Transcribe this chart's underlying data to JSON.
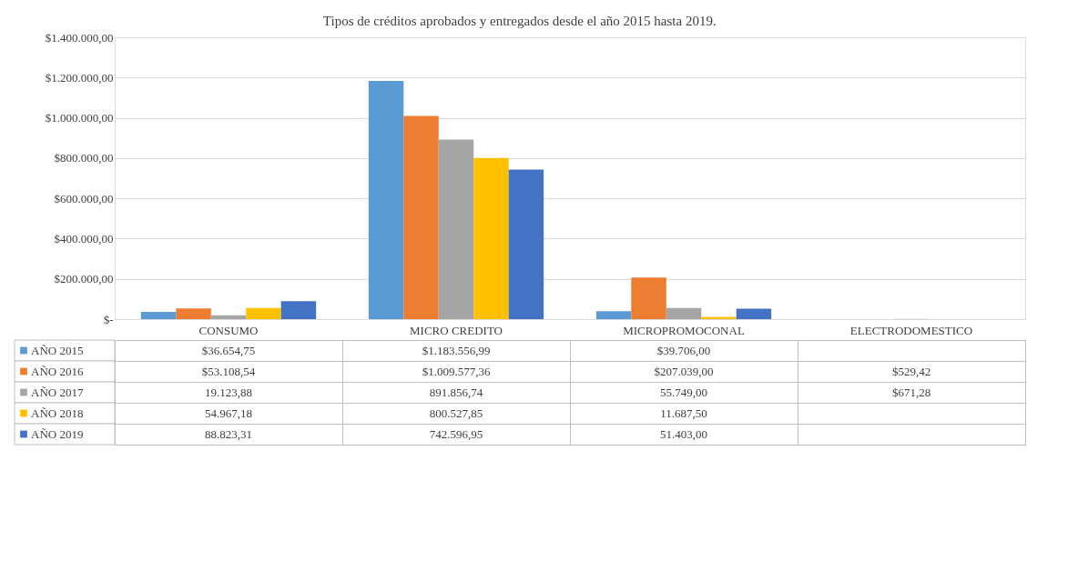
{
  "chart_data": {
    "type": "bar",
    "title": "Tipos de créditos aprobados y entregados desde el año 2015 hasta 2019.",
    "categories": [
      "CONSUMO",
      "MICRO CREDITO",
      "MICROPROMOCONAL",
      "ELECTRODOMESTICO"
    ],
    "series": [
      {
        "name": "AÑO 2015",
        "color": "#5b9bd5",
        "values": [
          36654.75,
          1183556.99,
          39706.0,
          null
        ],
        "value_labels": [
          "$36.654,75",
          "$1.183.556,99",
          "$39.706,00",
          null
        ]
      },
      {
        "name": "AÑO 2016",
        "color": "#ed7d31",
        "values": [
          53108.54,
          1009577.36,
          207039.0,
          529.42
        ],
        "value_labels": [
          "$53.108,54",
          "$1.009.577,36",
          "$207.039,00",
          "$529,42"
        ]
      },
      {
        "name": "AÑO 2017",
        "color": "#a5a5a5",
        "values": [
          19123.88,
          891856.74,
          55749.0,
          671.28
        ],
        "value_labels": [
          "19.123,88",
          "891.856,74",
          "55.749,00",
          "$671,28"
        ]
      },
      {
        "name": "AÑO 2018",
        "color": "#ffc000",
        "values": [
          54967.18,
          800527.85,
          11687.5,
          null
        ],
        "value_labels": [
          "54.967,18",
          "800.527,85",
          "11.687,50",
          null
        ]
      },
      {
        "name": "AÑO 2019",
        "color": "#4472c4",
        "values": [
          88823.31,
          742596.95,
          51403.0,
          null
        ],
        "value_labels": [
          "88.823,31",
          "742.596,95",
          "51.403,00",
          null
        ]
      }
    ],
    "ylim": [
      0,
      1400000
    ],
    "yticks": [
      {
        "value": 0,
        "label": "$-"
      },
      {
        "value": 200000,
        "label": "$200.000,00"
      },
      {
        "value": 400000,
        "label": "$400.000,00"
      },
      {
        "value": 600000,
        "label": "$600.000,00"
      },
      {
        "value": 800000,
        "label": "$800.000,00"
      },
      {
        "value": 1000000,
        "label": "$1.000.000,00"
      },
      {
        "value": 1200000,
        "label": "$1.200.000,00"
      },
      {
        "value": 1400000,
        "label": "$1.400.000,00"
      }
    ],
    "grid": "y",
    "legend": "bottom left"
  }
}
